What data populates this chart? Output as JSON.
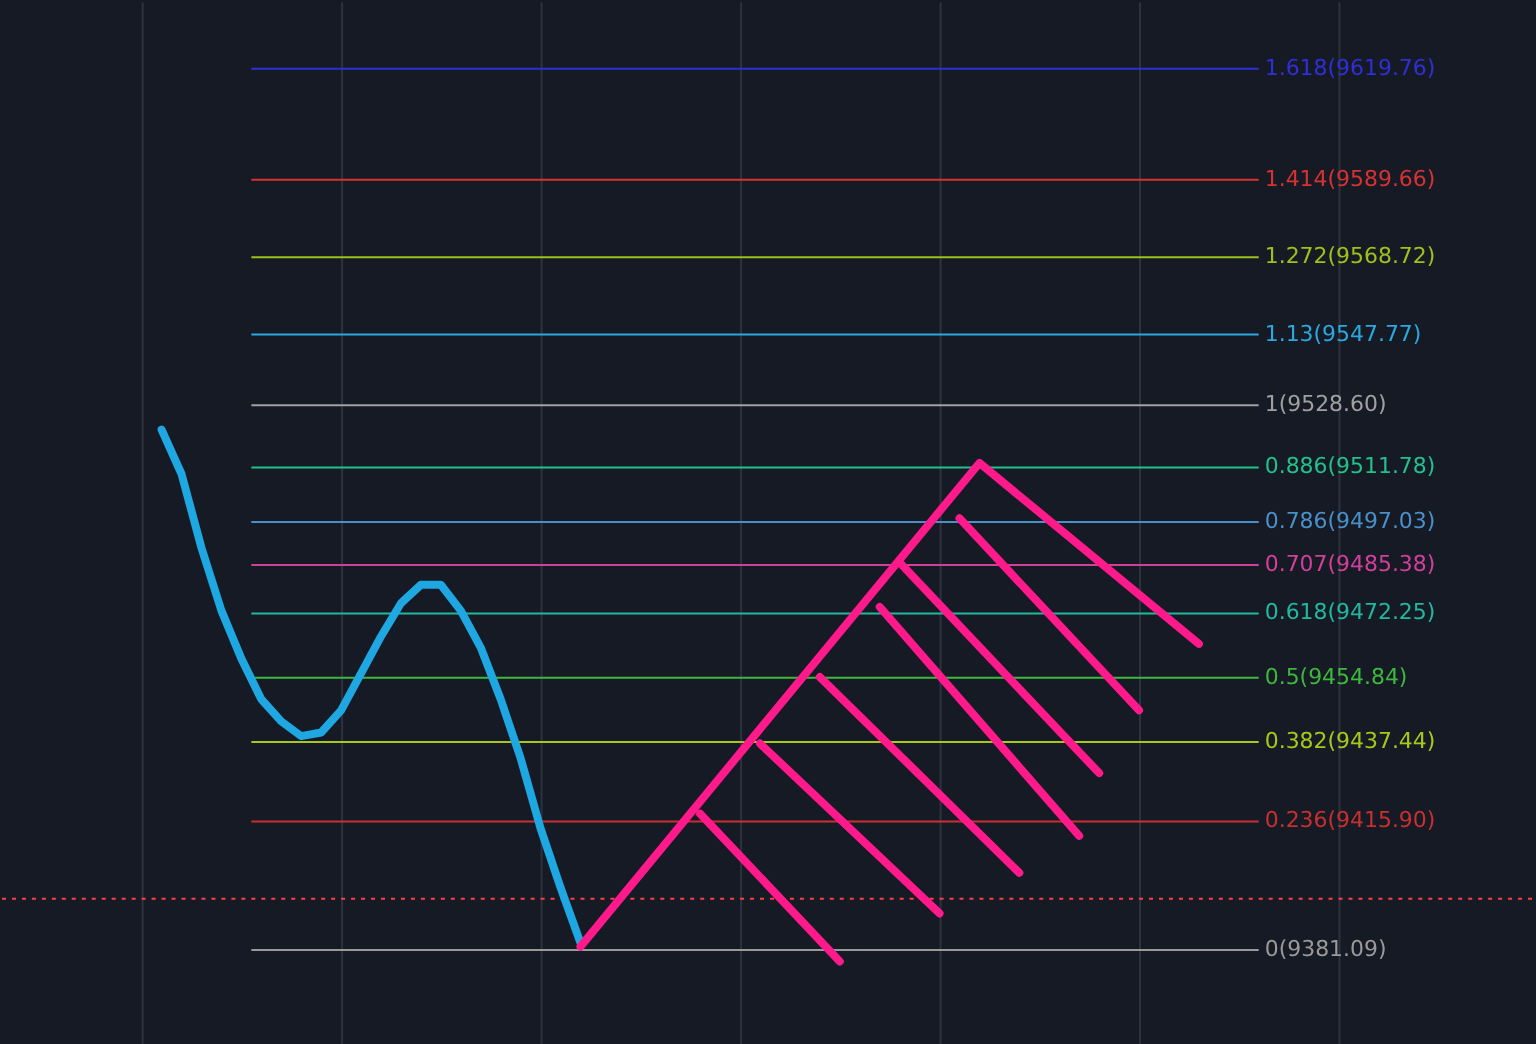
{
  "chart_data": {
    "type": "line",
    "categories": [
      null,
      null,
      null,
      null,
      null,
      null,
      null,
      null,
      null,
      null,
      null,
      null,
      null,
      null,
      null,
      null,
      null,
      null,
      null,
      null,
      null,
      null,
      null,
      null,
      null,
      null,
      null,
      null,
      null,
      null,
      null,
      null,
      null,
      null,
      null,
      null,
      null,
      null,
      null,
      null,
      null,
      null,
      null,
      null,
      null,
      null,
      null,
      null,
      null,
      null,
      null,
      null,
      null,
      null,
      null,
      null,
      null,
      null,
      null,
      null,
      null,
      null,
      null,
      null,
      null,
      null,
      null,
      null,
      null,
      null
    ],
    "series": [
      {
        "color": "#1ea7e0",
        "values": [
          null,
          9522,
          9510,
          9490,
          9473,
          9460,
          9449,
          9443,
          9439,
          9440,
          9446,
          9456,
          9466,
          9475,
          9480,
          9480,
          9473,
          9463,
          9449,
          9433,
          9414,
          9398,
          9383,
          null,
          null,
          null,
          null,
          null,
          null,
          null,
          null,
          null,
          null,
          null,
          null,
          null,
          null,
          null,
          null,
          null,
          null,
          null,
          null,
          null,
          null,
          null,
          null,
          null,
          null,
          null,
          null,
          null,
          null,
          null,
          null,
          null,
          null,
          null,
          null,
          null,
          null,
          null,
          null,
          null,
          null,
          null,
          null,
          null,
          null,
          null
        ]
      },
      {
        "color": "#ff1a8c",
        "values": [
          null,
          null,
          null,
          null,
          null,
          null,
          null,
          null,
          null,
          null,
          null,
          null,
          null,
          null,
          null,
          null,
          null,
          null,
          null,
          null,
          null,
          null,
          9382,
          null,
          null,
          null,
          null,
          null,
          null,
          null,
          null,
          null,
          null,
          null,
          null,
          null,
          null,
          null,
          null,
          null,
          null,
          null,
          9513,
          null,
          null,
          null,
          null,
          null,
          null,
          null,
          null,
          null,
          null,
          9464,
          null,
          null,
          null,
          null,
          null,
          null,
          null,
          null,
          null,
          null,
          null,
          null,
          null,
          null,
          null,
          null
        ]
      },
      {
        "color": "#ff1a8c",
        "values": [
          null,
          null,
          null,
          null,
          null,
          null,
          null,
          null,
          null,
          null,
          null,
          null,
          null,
          null,
          null,
          null,
          null,
          null,
          null,
          null,
          null,
          null,
          null,
          null,
          null,
          null,
          null,
          null,
          9418,
          null,
          null,
          null,
          null,
          null,
          null,
          9378,
          null,
          null,
          null,
          null,
          null,
          null,
          null,
          null,
          null,
          null,
          null,
          null,
          null,
          null,
          null,
          null,
          null,
          null,
          null,
          null,
          null,
          null,
          null,
          null,
          null,
          null,
          null,
          null,
          null,
          null,
          null,
          null,
          null,
          null
        ]
      },
      {
        "color": "#ff1a8c",
        "values": [
          null,
          null,
          null,
          null,
          null,
          null,
          null,
          null,
          null,
          null,
          null,
          null,
          null,
          null,
          null,
          null,
          null,
          null,
          null,
          null,
          null,
          null,
          null,
          null,
          null,
          null,
          null,
          null,
          null,
          null,
          null,
          9437,
          null,
          null,
          null,
          null,
          null,
          null,
          null,
          null,
          9391,
          null,
          null,
          null,
          null,
          null,
          null,
          null,
          null,
          null,
          null,
          null,
          null,
          null,
          null,
          null,
          null,
          null,
          null,
          null,
          null,
          null,
          null,
          null,
          null,
          null,
          null,
          null,
          null,
          null
        ]
      },
      {
        "color": "#ff1a8c",
        "values": [
          null,
          null,
          null,
          null,
          null,
          null,
          null,
          null,
          null,
          null,
          null,
          null,
          null,
          null,
          null,
          null,
          null,
          null,
          null,
          null,
          null,
          null,
          null,
          null,
          null,
          null,
          null,
          null,
          null,
          null,
          null,
          null,
          null,
          null,
          9455,
          null,
          null,
          null,
          null,
          null,
          null,
          null,
          null,
          null,
          9402,
          null,
          null,
          null,
          null,
          null,
          null,
          null,
          null,
          null,
          null,
          null,
          null,
          null,
          null,
          null,
          null,
          null,
          null,
          null,
          null,
          null,
          null,
          null,
          null,
          null
        ]
      },
      {
        "color": "#ff1a8c",
        "values": [
          null,
          null,
          null,
          null,
          null,
          null,
          null,
          null,
          null,
          null,
          null,
          null,
          null,
          null,
          null,
          null,
          null,
          null,
          null,
          null,
          null,
          null,
          null,
          null,
          null,
          null,
          null,
          null,
          null,
          null,
          null,
          null,
          null,
          null,
          null,
          null,
          null,
          9474,
          null,
          null,
          null,
          null,
          null,
          null,
          null,
          null,
          null,
          9412,
          null,
          null,
          null,
          null,
          null,
          null,
          null,
          null,
          null,
          null,
          null,
          null,
          null,
          null,
          null,
          null,
          null,
          null,
          null,
          null,
          null,
          null
        ]
      },
      {
        "color": "#ff1a8c",
        "values": [
          null,
          null,
          null,
          null,
          null,
          null,
          null,
          null,
          null,
          null,
          null,
          null,
          null,
          null,
          null,
          null,
          null,
          null,
          null,
          null,
          null,
          null,
          null,
          null,
          null,
          null,
          null,
          null,
          null,
          null,
          null,
          null,
          null,
          null,
          null,
          null,
          null,
          null,
          9486,
          null,
          null,
          null,
          null,
          null,
          null,
          null,
          null,
          null,
          9429,
          null,
          null,
          null,
          null,
          null,
          null,
          null,
          null,
          null,
          null,
          null,
          null,
          null,
          null,
          null,
          null,
          null,
          null,
          null,
          null,
          null
        ]
      },
      {
        "color": "#ff1a8c",
        "values": [
          null,
          null,
          null,
          null,
          null,
          null,
          null,
          null,
          null,
          null,
          null,
          null,
          null,
          null,
          null,
          null,
          null,
          null,
          null,
          null,
          null,
          null,
          null,
          null,
          null,
          null,
          null,
          null,
          null,
          null,
          null,
          null,
          null,
          null,
          null,
          null,
          null,
          null,
          null,
          null,
          null,
          9498,
          null,
          null,
          null,
          null,
          null,
          null,
          null,
          null,
          9446,
          null,
          null,
          null,
          null,
          null,
          null,
          null,
          null,
          null,
          null,
          null,
          null,
          null,
          null,
          null,
          null,
          null,
          null,
          null
        ]
      }
    ],
    "ylim": [
      9356,
      9638
    ],
    "grid": true,
    "tick_labels": false,
    "ref_lines": [
      {
        "axis": "y",
        "value": 9619.76,
        "label": "1.618(9619.76)",
        "color": "#2f2fd6"
      },
      {
        "axis": "y",
        "value": 9589.66,
        "label": "1.414(9589.66)",
        "color": "#d63232"
      },
      {
        "axis": "y",
        "value": 9568.72,
        "label": "1.272(9568.72)",
        "color": "#9cc21a"
      },
      {
        "axis": "y",
        "value": 9547.77,
        "label": "1.13(9547.77)",
        "color": "#2aa8e0"
      },
      {
        "axis": "y",
        "value": 9528.6,
        "label": "1(9528.60)",
        "color": "#a0a0a0"
      },
      {
        "axis": "y",
        "value": 9511.78,
        "label": "0.886(9511.78)",
        "color": "#22c08a"
      },
      {
        "axis": "y",
        "value": 9497.03,
        "label": "0.786(9497.03)",
        "color": "#4a90c8"
      },
      {
        "axis": "y",
        "value": 9485.38,
        "label": "0.707(9485.38)",
        "color": "#d0409a"
      },
      {
        "axis": "y",
        "value": 9472.25,
        "label": "0.618(9472.25)",
        "color": "#22b8a0"
      },
      {
        "axis": "y",
        "value": 9454.84,
        "label": "0.5(9454.84)",
        "color": "#3cb83c"
      },
      {
        "axis": "y",
        "value": 9437.44,
        "label": "0.382(9437.44)",
        "color": "#a8c818"
      },
      {
        "axis": "y",
        "value": 9415.9,
        "label": "0.236(9415.90)",
        "color": "#c83030"
      },
      {
        "axis": "y",
        "value": 9381.09,
        "label": "0(9381.09)",
        "color": "#9a9a9a"
      },
      {
        "axis": "y",
        "value": 9395,
        "color": "#ff4040",
        "line_style": "dotted"
      }
    ]
  }
}
